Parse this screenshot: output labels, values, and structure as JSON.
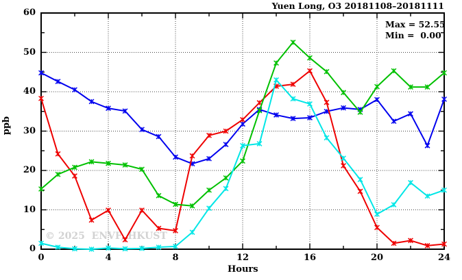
{
  "header": {
    "title": "Yuen Long, O3 20181108–20181111"
  },
  "legend": {
    "max_line": "Max = 52.55",
    "min_line": "Min =  0.00",
    "max_value": 52.55,
    "min_value": 0.0
  },
  "axes": {
    "xlabel": "Hours",
    "ylabel": "ppb"
  },
  "watermark": {
    "text": "© 2025  ENVF, HKUST"
  },
  "chart_data": {
    "type": "line",
    "title": "Yuen Long, O3 20181108–20181111",
    "xlabel": "Hours",
    "ylabel": "ppb",
    "xlim": [
      0,
      24
    ],
    "ylim": [
      0,
      60
    ],
    "x_major_ticks": [
      0,
      4,
      8,
      12,
      16,
      20,
      24
    ],
    "x_minor_step": 2,
    "y_major_ticks": [
      0,
      10,
      20,
      30,
      40,
      50,
      60
    ],
    "y_minor_step": 5,
    "grid": true,
    "legend_position": "top-right-inside",
    "annotations": [
      "Max = 52.55",
      "Min =  0.00"
    ],
    "x": [
      0,
      1,
      2,
      3,
      4,
      5,
      6,
      7,
      8,
      9,
      10,
      11,
      12,
      13,
      14,
      15,
      16,
      17,
      18,
      19,
      20,
      21,
      22,
      23,
      24
    ],
    "series": [
      {
        "name": "blue",
        "color": "#0000ee",
        "values": [
          44.8,
          42.6,
          40.5,
          37.5,
          35.8,
          35.1,
          30.4,
          28.6,
          23.4,
          21.7,
          23.0,
          26.6,
          31.8,
          35.5,
          34.1,
          33.2,
          33.4,
          35.0,
          35.9,
          35.5,
          38.0,
          32.5,
          34.4,
          26.3,
          38.1
        ]
      },
      {
        "name": "red",
        "color": "#ee0000",
        "values": [
          38.3,
          24.2,
          18.6,
          7.4,
          9.9,
          2.4,
          9.9,
          5.3,
          4.7,
          23.7,
          28.9,
          30.0,
          32.9,
          37.2,
          41.4,
          41.9,
          45.3,
          37.3,
          21.2,
          14.7,
          5.5,
          1.5,
          2.2,
          0.9,
          1.3
        ]
      },
      {
        "name": "green",
        "color": "#00c000",
        "values": [
          15.3,
          19.0,
          20.8,
          22.2,
          21.8,
          21.4,
          20.3,
          13.6,
          11.4,
          11.0,
          15.0,
          18.1,
          22.4,
          35.2,
          47.3,
          52.55,
          48.6,
          45.1,
          39.8,
          34.8,
          41.3,
          45.3,
          41.2,
          41.2,
          44.8
        ]
      },
      {
        "name": "cyan",
        "color": "#00e6e6",
        "values": [
          1.5,
          0.5,
          0.1,
          0.0,
          0.3,
          0.1,
          0.2,
          0.5,
          0.7,
          4.3,
          10.4,
          15.4,
          26.3,
          26.8,
          43.0,
          38.2,
          36.9,
          28.3,
          23.1,
          17.7,
          8.9,
          11.3,
          16.9,
          13.5,
          15.0
        ]
      }
    ]
  }
}
